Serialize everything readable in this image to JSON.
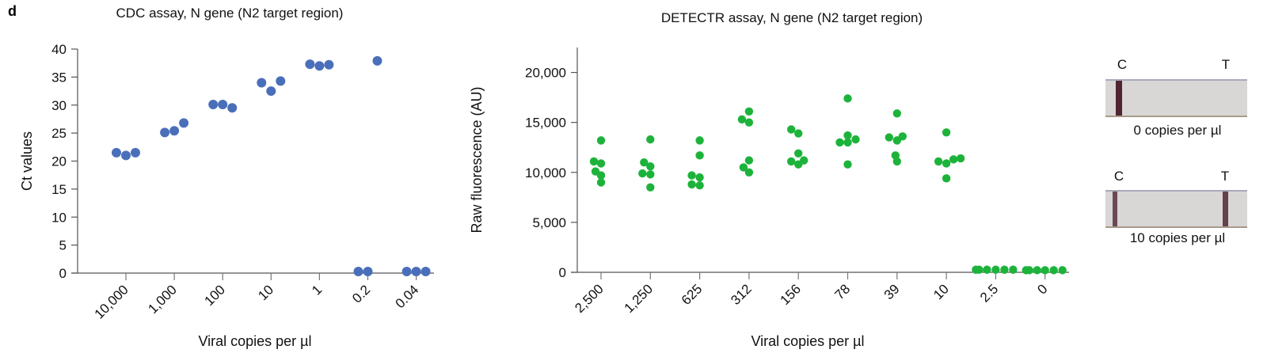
{
  "panel_label": "d",
  "chart_data": [
    {
      "type": "scatter",
      "title": "CDC assay, N gene (N2 target region)",
      "xlabel": "Viral copies per µl",
      "ylabel": "Ct values",
      "ylim": [
        0,
        40
      ],
      "yticks": [
        0,
        5,
        10,
        15,
        20,
        25,
        30,
        35,
        40
      ],
      "ytick_labels": [
        "0",
        "5",
        "10",
        "15",
        "20",
        "25",
        "30",
        "35",
        "40"
      ],
      "categories": [
        "10,000",
        "1,000",
        "100",
        "10",
        "1",
        "0.2",
        "0.04"
      ],
      "values": [
        [
          21.5,
          21.0,
          21.5
        ],
        [
          25.1,
          25.4,
          26.8
        ],
        [
          30.1,
          30.1,
          29.5
        ],
        [
          34.0,
          32.5,
          34.3
        ],
        [
          37.3,
          37.0,
          37.2
        ],
        [
          0,
          0,
          37.9
        ],
        [
          0,
          0,
          0
        ]
      ],
      "color": "#4a6fba",
      "grid": false
    },
    {
      "type": "scatter",
      "title": "DETECTR assay, N gene (N2 target region)",
      "xlabel": "Viral copies per µl",
      "ylabel": "Raw fluorescence (AU)",
      "ylim": [
        0,
        22500
      ],
      "yticks": [
        0,
        5000,
        10000,
        15000,
        20000
      ],
      "ytick_labels": [
        "0",
        "5,000",
        "10,000",
        "15,000",
        "20,000"
      ],
      "categories": [
        "2,500",
        "1,250",
        "625",
        "312",
        "156",
        "78",
        "39",
        "10",
        "2.5",
        "0"
      ],
      "values": [
        [
          13200,
          11100,
          10900,
          10100,
          9700,
          9000
        ],
        [
          13300,
          11000,
          10600,
          9900,
          9800,
          8500
        ],
        [
          13200,
          11700,
          9700,
          9500,
          8800,
          8700
        ],
        [
          16100,
          15300,
          15000,
          11200,
          10500,
          10000
        ],
        [
          14300,
          13900,
          11900,
          11200,
          11100,
          10800
        ],
        [
          17400,
          13700,
          13300,
          13000,
          13000,
          10800
        ],
        [
          15900,
          13600,
          13500,
          13200,
          11700,
          11100
        ],
        [
          14000,
          11400,
          11300,
          11100,
          10900,
          9400
        ],
        [
          100,
          100,
          100,
          100,
          100,
          100
        ],
        [
          50,
          50,
          50,
          50,
          50,
          50
        ]
      ],
      "color": "#1db33b",
      "grid": false
    }
  ],
  "lateral_flow": {
    "strips": [
      {
        "control_label": "C",
        "test_label": "T",
        "caption": "0 copies per µl",
        "test_band_visible": false
      },
      {
        "control_label": "C",
        "test_label": "T",
        "caption": "10 copies per µl",
        "test_band_visible": true
      }
    ],
    "band_color": "#4a1a2a",
    "strip_color": "#d9d6d6"
  }
}
